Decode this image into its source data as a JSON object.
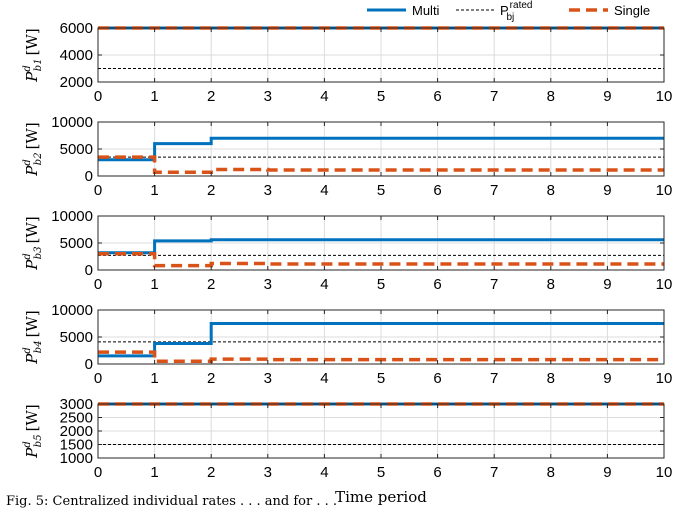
{
  "chart_data": {
    "type": "line",
    "xlabel": "Time period",
    "xticks": [
      0,
      1,
      2,
      3,
      4,
      5,
      6,
      7,
      8,
      9,
      10
    ],
    "xlim": [
      0,
      10
    ],
    "legend": {
      "placement": "top-right",
      "entries": [
        {
          "key": "multi",
          "label": "Multi"
        },
        {
          "key": "rated",
          "label": "P",
          "sup": "rated",
          "sub": "bj"
        },
        {
          "key": "single",
          "label": "Single"
        }
      ]
    },
    "colors": {
      "multi": "#0072bd",
      "single": "#d95319",
      "rated": "#000000"
    },
    "panels": [
      {
        "ylabel": "P^d_{b1} [W]",
        "ylabel_main": "P",
        "ylabel_sup": "d",
        "ylabel_sub": "b1",
        "ylabel_unit": "[W]",
        "ylim": [
          2000,
          6000
        ],
        "yticks": [
          2000,
          4000,
          6000
        ],
        "rated": 3000,
        "multi": [
          6000,
          6000,
          6000,
          6000,
          6000,
          6000,
          6000,
          6000,
          6000,
          6000
        ],
        "single": [
          6000,
          6000,
          6000,
          6000,
          6000,
          6000,
          6000,
          6000,
          6000,
          6000
        ]
      },
      {
        "ylabel": "P^d_{b2} [W]",
        "ylabel_main": "P",
        "ylabel_sup": "d",
        "ylabel_sub": "b2",
        "ylabel_unit": "[W]",
        "ylim": [
          0,
          10000
        ],
        "yticks": [
          0,
          5000,
          10000
        ],
        "rated": 3500,
        "multi": [
          3000,
          6000,
          7000,
          7000,
          7000,
          7000,
          7000,
          7000,
          7000,
          7000
        ],
        "single": [
          3500,
          700,
          1200,
          1100,
          1100,
          1100,
          1100,
          1100,
          1100,
          1100
        ]
      },
      {
        "ylabel": "P^d_{b3} [W]",
        "ylabel_main": "P",
        "ylabel_sup": "d",
        "ylabel_sub": "b3",
        "ylabel_unit": "[W]",
        "ylim": [
          0,
          10000
        ],
        "yticks": [
          0,
          5000,
          10000
        ],
        "rated": 2700,
        "multi": [
          3200,
          5400,
          5600,
          5600,
          5600,
          5600,
          5600,
          5600,
          5600,
          5600
        ],
        "single": [
          3000,
          800,
          1200,
          1100,
          1100,
          1100,
          1100,
          1100,
          1100,
          1100
        ]
      },
      {
        "ylabel": "P^d_{b4} [W]",
        "ylabel_main": "P",
        "ylabel_sup": "d",
        "ylabel_sub": "b4",
        "ylabel_unit": "[W]",
        "ylim": [
          0,
          10000
        ],
        "yticks": [
          0,
          5000,
          10000
        ],
        "rated": 4100,
        "multi": [
          1500,
          3800,
          7500,
          7500,
          7500,
          7500,
          7500,
          7500,
          7500,
          7500
        ],
        "single": [
          2200,
          500,
          900,
          800,
          800,
          800,
          800,
          800,
          800,
          800
        ]
      },
      {
        "ylabel": "P^d_{b5} [W]",
        "ylabel_main": "P",
        "ylabel_sup": "d",
        "ylabel_sub": "b5",
        "ylabel_unit": "[W]",
        "ylim": [
          1000,
          3000
        ],
        "yticks": [
          1000,
          1500,
          2000,
          2500,
          3000
        ],
        "rated": 1500,
        "multi": [
          3000,
          3000,
          3000,
          3000,
          3000,
          3000,
          3000,
          3000,
          3000,
          3000
        ],
        "single": [
          3000,
          3000,
          3000,
          3000,
          3000,
          3000,
          3000,
          3000,
          3000,
          3000
        ]
      }
    ]
  },
  "caption": "Fig. 5: Centralized individual rates . . . and for . . ."
}
